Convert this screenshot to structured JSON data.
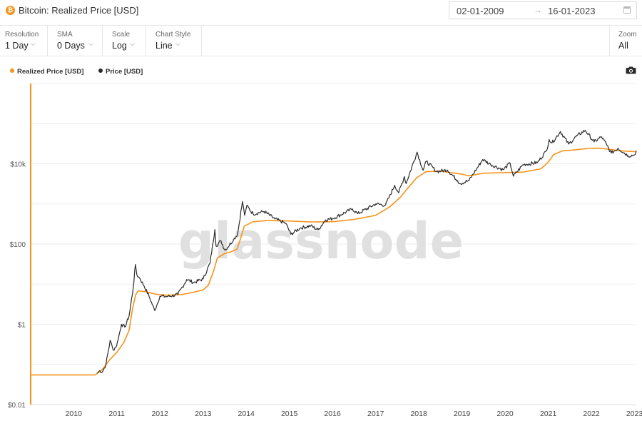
{
  "header": {
    "title": "Bitcoin: Realized Price [USD]",
    "logo_glyph": "₿",
    "date_start": "02-01-2009",
    "date_arrow": "→",
    "date_end": "16-01-2023"
  },
  "toolbar": {
    "resolution": {
      "label": "Resolution",
      "value": "1 Day"
    },
    "sma": {
      "label": "SMA",
      "value": "0 Days"
    },
    "scale": {
      "label": "Scale",
      "value": "Log"
    },
    "chart_style": {
      "label": "Chart Style",
      "value": "Line"
    },
    "zoom": {
      "label": "Zoom",
      "value": "All"
    },
    "chevron": "⌵"
  },
  "icons": {
    "logo": "bitcoin-icon",
    "calendar": "calendar-icon",
    "camera": "camera-icon",
    "chevron": "chevron-down-icon"
  },
  "colors": {
    "realized": "#f7931a",
    "price": "#2b2b2b",
    "watermark": "#e0e0e0",
    "grid": "#eeeeee",
    "axis": "#f7931a"
  },
  "watermark": "glassnode",
  "chart_data": {
    "type": "line",
    "title": "",
    "xlabel": "",
    "ylabel": "",
    "y_scale": "log",
    "ylim": [
      0.01,
      1000000
    ],
    "xlim": [
      "2009-01-02",
      "2023-01-16"
    ],
    "grid": true,
    "legend_position": "top-left",
    "x_ticks": [
      {
        "date": "2010-01-01",
        "label": "2010"
      },
      {
        "date": "2011-01-01",
        "label": "2011"
      },
      {
        "date": "2012-01-01",
        "label": "2012"
      },
      {
        "date": "2013-01-01",
        "label": "2013"
      },
      {
        "date": "2014-01-01",
        "label": "2014"
      },
      {
        "date": "2015-01-01",
        "label": "2015"
      },
      {
        "date": "2016-01-01",
        "label": "2016"
      },
      {
        "date": "2017-01-01",
        "label": "2017"
      },
      {
        "date": "2018-01-01",
        "label": "2018"
      },
      {
        "date": "2019-01-01",
        "label": "2019"
      },
      {
        "date": "2020-01-01",
        "label": "2020"
      },
      {
        "date": "2021-01-01",
        "label": "2021"
      },
      {
        "date": "2022-01-01",
        "label": "2022"
      },
      {
        "date": "2023-01-01",
        "label": "2023"
      }
    ],
    "y_ticks": [
      {
        "value": 0.01,
        "label": "$0.01"
      },
      {
        "value": 1,
        "label": "$1"
      },
      {
        "value": 100,
        "label": "$100"
      },
      {
        "value": 10000,
        "label": "$10k"
      }
    ],
    "series": [
      {
        "name": "Realized Price [USD]",
        "color": "#f7931a",
        "points": [
          [
            "2009-01-03",
            0.055
          ],
          [
            "2010-07-01",
            0.055
          ],
          [
            "2010-07-20",
            0.06
          ],
          [
            "2010-09-01",
            0.075
          ],
          [
            "2010-11-01",
            0.13
          ],
          [
            "2011-01-01",
            0.2
          ],
          [
            "2011-03-01",
            0.35
          ],
          [
            "2011-04-15",
            0.7
          ],
          [
            "2011-05-15",
            2.5
          ],
          [
            "2011-06-10",
            5.5
          ],
          [
            "2011-07-01",
            6.8
          ],
          [
            "2011-09-01",
            6.5
          ],
          [
            "2011-12-01",
            5.6
          ],
          [
            "2012-03-01",
            5.3
          ],
          [
            "2012-07-01",
            5.5
          ],
          [
            "2012-10-01",
            6.2
          ],
          [
            "2013-01-01",
            7.2
          ],
          [
            "2013-02-15",
            9.5
          ],
          [
            "2013-04-01",
            22
          ],
          [
            "2013-05-01",
            45
          ],
          [
            "2013-07-01",
            58
          ],
          [
            "2013-09-01",
            65
          ],
          [
            "2013-10-15",
            75
          ],
          [
            "2013-11-15",
            140
          ],
          [
            "2013-12-15",
            280
          ],
          [
            "2014-03-01",
            360
          ],
          [
            "2014-07-01",
            385
          ],
          [
            "2015-01-01",
            375
          ],
          [
            "2015-07-01",
            355
          ],
          [
            "2016-01-01",
            360
          ],
          [
            "2016-07-01",
            410
          ],
          [
            "2017-01-01",
            520
          ],
          [
            "2017-05-01",
            850
          ],
          [
            "2017-08-01",
            1500
          ],
          [
            "2017-10-01",
            2500
          ],
          [
            "2017-12-15",
            4500
          ],
          [
            "2018-03-01",
            6300
          ],
          [
            "2018-07-01",
            6600
          ],
          [
            "2019-01-01",
            5500
          ],
          [
            "2019-03-01",
            5000
          ],
          [
            "2019-07-01",
            5800
          ],
          [
            "2019-12-01",
            6000
          ],
          [
            "2020-06-01",
            6200
          ],
          [
            "2020-11-01",
            7500
          ],
          [
            "2021-01-01",
            11000
          ],
          [
            "2021-02-15",
            17000
          ],
          [
            "2021-05-01",
            21000
          ],
          [
            "2021-08-01",
            22000
          ],
          [
            "2021-12-01",
            24000
          ],
          [
            "2022-03-01",
            24500
          ],
          [
            "2022-06-01",
            23000
          ],
          [
            "2022-09-01",
            21000
          ],
          [
            "2023-01-16",
            20000
          ]
        ]
      },
      {
        "name": "Price [USD]",
        "color": "#2b2b2b",
        "points": [
          [
            "2010-07-18",
            0.06
          ],
          [
            "2010-08-10",
            0.07
          ],
          [
            "2010-09-01",
            0.065
          ],
          [
            "2010-10-01",
            0.1
          ],
          [
            "2010-11-06",
            0.4
          ],
          [
            "2010-12-01",
            0.23
          ],
          [
            "2011-01-01",
            0.3
          ],
          [
            "2011-02-10",
            1.0
          ],
          [
            "2011-03-10",
            0.85
          ],
          [
            "2011-04-15",
            1.6
          ],
          [
            "2011-05-20",
            8
          ],
          [
            "2011-06-08",
            31
          ],
          [
            "2011-06-20",
            17
          ],
          [
            "2011-07-15",
            14
          ],
          [
            "2011-08-20",
            9
          ],
          [
            "2011-10-01",
            5
          ],
          [
            "2011-11-18",
            2.2
          ],
          [
            "2012-01-01",
            5
          ],
          [
            "2012-03-01",
            4.9
          ],
          [
            "2012-06-01",
            5.5
          ],
          [
            "2012-08-15",
            13
          ],
          [
            "2012-10-15",
            11
          ],
          [
            "2013-01-01",
            13.5
          ],
          [
            "2013-03-01",
            34
          ],
          [
            "2013-04-10",
            230
          ],
          [
            "2013-04-20",
            90
          ],
          [
            "2013-06-01",
            120
          ],
          [
            "2013-07-05",
            70
          ],
          [
            "2013-09-15",
            128
          ],
          [
            "2013-10-20",
            180
          ],
          [
            "2013-11-30",
            1150
          ],
          [
            "2013-12-18",
            520
          ],
          [
            "2014-01-05",
            900
          ],
          [
            "2014-03-01",
            560
          ],
          [
            "2014-06-01",
            650
          ],
          [
            "2014-09-01",
            420
          ],
          [
            "2014-12-01",
            330
          ],
          [
            "2015-01-14",
            175
          ],
          [
            "2015-04-01",
            250
          ],
          [
            "2015-07-01",
            285
          ],
          [
            "2015-09-01",
            225
          ],
          [
            "2015-11-04",
            400
          ],
          [
            "2016-01-01",
            430
          ],
          [
            "2016-06-18",
            750
          ],
          [
            "2016-08-01",
            570
          ],
          [
            "2017-01-01",
            1000
          ],
          [
            "2017-03-25",
            930
          ],
          [
            "2017-06-10",
            2900
          ],
          [
            "2017-07-15",
            1900
          ],
          [
            "2017-09-01",
            4800
          ],
          [
            "2017-09-15",
            3200
          ],
          [
            "2017-12-17",
            19500
          ],
          [
            "2018-02-06",
            6900
          ],
          [
            "2018-03-05",
            11500
          ],
          [
            "2018-06-01",
            6400
          ],
          [
            "2018-09-01",
            7000
          ],
          [
            "2018-11-25",
            3800
          ],
          [
            "2018-12-15",
            3200
          ],
          [
            "2019-03-01",
            3800
          ],
          [
            "2019-06-26",
            12800
          ],
          [
            "2019-09-01",
            9600
          ],
          [
            "2019-12-15",
            7100
          ],
          [
            "2020-02-13",
            10300
          ],
          [
            "2020-03-12",
            4900
          ],
          [
            "2020-06-01",
            9500
          ],
          [
            "2020-10-01",
            10700
          ],
          [
            "2020-12-16",
            21000
          ],
          [
            "2021-01-08",
            40000
          ],
          [
            "2021-02-01",
            33000
          ],
          [
            "2021-04-14",
            63500
          ],
          [
            "2021-06-22",
            31000
          ],
          [
            "2021-09-06",
            51000
          ],
          [
            "2021-11-10",
            68000
          ],
          [
            "2022-01-24",
            35000
          ],
          [
            "2022-03-28",
            47000
          ],
          [
            "2022-05-12",
            29000
          ],
          [
            "2022-06-18",
            18500
          ],
          [
            "2022-08-15",
            24400
          ],
          [
            "2022-11-09",
            15800
          ],
          [
            "2022-12-30",
            16500
          ],
          [
            "2023-01-16",
            21100
          ]
        ]
      }
    ]
  }
}
